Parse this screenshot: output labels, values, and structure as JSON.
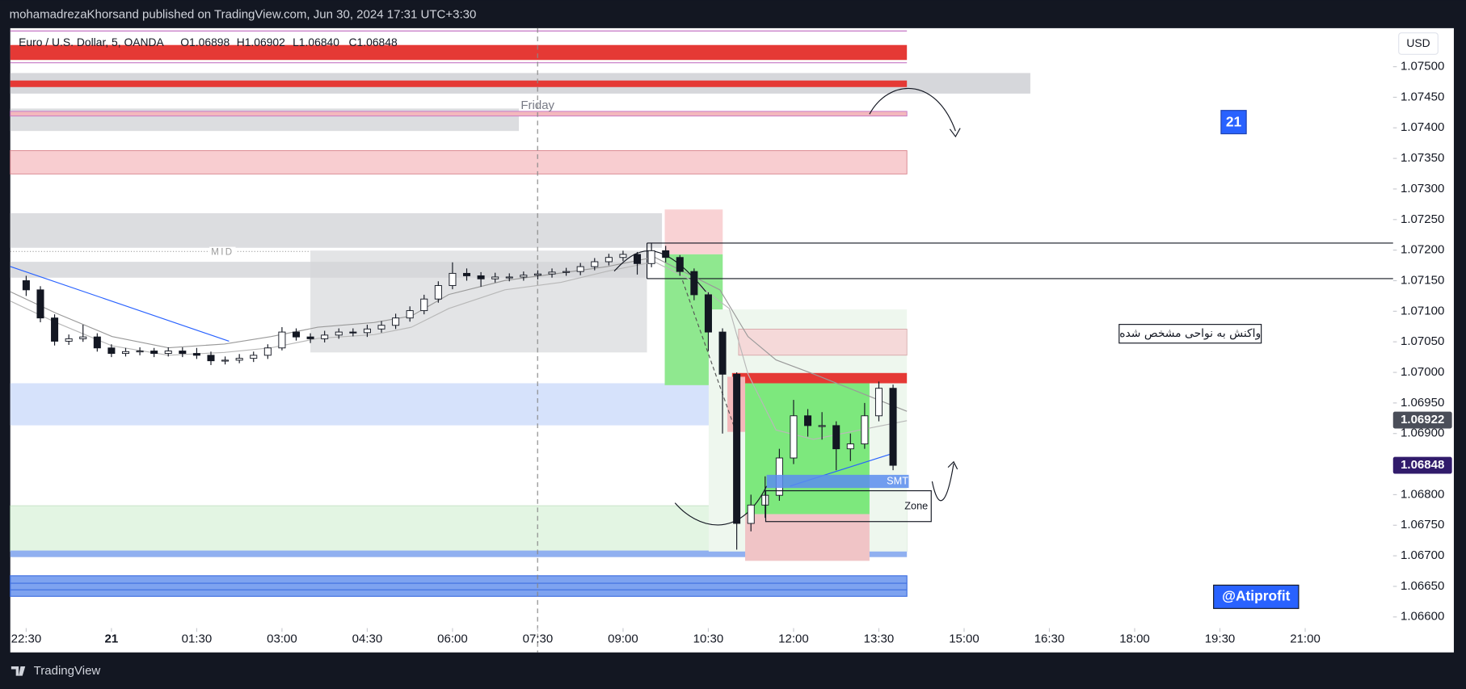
{
  "header": {
    "publisher": "mohamadrezaKhorsand published on TradingView.com, Jun 30, 2024 17:31 UTC+3:30"
  },
  "footer": {
    "brand": "TradingView"
  },
  "chart_data": {
    "type": "candlestick",
    "symbol": "Euro / U.S. Dollar, 5, OANDA",
    "ohlc_legend": [
      "O1.06898",
      "H1.06902",
      "L1.06840",
      "C1.06848"
    ],
    "currency": "USD",
    "session_label": "Friday",
    "mid_label": "MID",
    "annotations": [
      "21",
      "واکنش به نواحی مشخص شده",
      "SMT",
      "Zone",
      "@Atiprofit"
    ],
    "up_color": "#ffffff",
    "down_color": "#131722",
    "x": [
      "22:30",
      "22:45",
      "23:00",
      "23:15",
      "23:30",
      "23:45",
      "00:00",
      "00:15",
      "00:30",
      "00:45",
      "01:00",
      "01:15",
      "01:30",
      "01:45",
      "02:00",
      "02:15",
      "02:30",
      "02:45",
      "03:00",
      "03:15",
      "03:30",
      "03:45",
      "04:00",
      "04:15",
      "04:30",
      "04:45",
      "05:00",
      "05:15",
      "05:30",
      "05:45",
      "06:00",
      "06:15",
      "06:30",
      "06:45",
      "07:00",
      "07:15",
      "07:30",
      "07:45",
      "08:00",
      "08:15",
      "08:30",
      "08:45",
      "09:00",
      "09:15",
      "09:30",
      "09:45",
      "10:00",
      "10:15",
      "10:30",
      "10:45",
      "11:00",
      "11:15",
      "11:30",
      "11:45",
      "12:00",
      "12:15",
      "12:30",
      "12:45",
      "13:00",
      "13:15",
      "13:30",
      "13:45"
    ],
    "open": [
      1.0715,
      1.07135,
      1.07089,
      1.07051,
      1.07055,
      1.07058,
      1.0704,
      1.07031,
      1.07034,
      1.07035,
      1.07031,
      1.07035,
      1.07031,
      1.07028,
      1.07019,
      1.0702,
      1.07023,
      1.07028,
      1.0704,
      1.07066,
      1.07058,
      1.07055,
      1.07061,
      1.07066,
      1.07065,
      1.07071,
      1.07077,
      1.07089,
      1.07101,
      1.0712,
      1.07142,
      1.07162,
      1.07158,
      1.07153,
      1.07156,
      1.07156,
      1.07159,
      1.07161,
      1.07164,
      1.07165,
      1.07173,
      1.07181,
      1.07188,
      1.07193,
      1.07178,
      1.07199,
      1.07188,
      1.07165,
      1.07127,
      1.07066,
      1.06997,
      1.06753,
      1.06783,
      1.06799,
      1.0686,
      1.06929,
      1.06913,
      1.06913,
      1.06875,
      1.06883,
      1.06929,
      1.06974
    ],
    "high": [
      1.07158,
      1.07141,
      1.07095,
      1.07062,
      1.07078,
      1.07064,
      1.07046,
      1.0704,
      1.07041,
      1.0704,
      1.07041,
      1.07041,
      1.0704,
      1.07034,
      1.07026,
      1.0703,
      1.07034,
      1.07046,
      1.07074,
      1.07072,
      1.07064,
      1.07068,
      1.07072,
      1.07072,
      1.07078,
      1.07084,
      1.07096,
      1.07108,
      1.07127,
      1.07149,
      1.0718,
      1.0717,
      1.07164,
      1.07163,
      1.07162,
      1.07165,
      1.07167,
      1.0717,
      1.07171,
      1.07179,
      1.07187,
      1.07194,
      1.07199,
      1.07197,
      1.07212,
      1.07207,
      1.07192,
      1.0717,
      1.07131,
      1.07072,
      1.07,
      1.068,
      1.0683,
      1.06875,
      1.06955,
      1.0694,
      1.06935,
      1.0692,
      1.069,
      1.0695,
      1.06985,
      1.0698
    ],
    "low": [
      1.07125,
      1.07082,
      1.07044,
      1.07045,
      1.0705,
      1.07034,
      1.07025,
      1.07026,
      1.07028,
      1.07025,
      1.07026,
      1.07025,
      1.07022,
      1.07012,
      1.07013,
      1.07015,
      1.07017,
      1.07022,
      1.07036,
      1.07052,
      1.07048,
      1.07049,
      1.07055,
      1.07059,
      1.07058,
      1.07065,
      1.07071,
      1.07083,
      1.07095,
      1.07114,
      1.07136,
      1.0715,
      1.0714,
      1.07147,
      1.07149,
      1.0715,
      1.07152,
      1.07155,
      1.07158,
      1.07159,
      1.07167,
      1.07175,
      1.07182,
      1.0716,
      1.07172,
      1.0718,
      1.07158,
      1.07118,
      1.07035,
      1.069,
      1.0671,
      1.0674,
      1.06762,
      1.0679,
      1.0685,
      1.06895,
      1.0689,
      1.0684,
      1.06855,
      1.06875,
      1.0692,
      1.0684
    ],
    "close": [
      1.07135,
      1.07089,
      1.07051,
      1.07055,
      1.07058,
      1.0704,
      1.07031,
      1.07034,
      1.07035,
      1.07031,
      1.07035,
      1.07031,
      1.07028,
      1.07019,
      1.0702,
      1.07023,
      1.07028,
      1.0704,
      1.07066,
      1.07058,
      1.07055,
      1.07061,
      1.07066,
      1.07065,
      1.07071,
      1.07077,
      1.07089,
      1.07101,
      1.0712,
      1.07142,
      1.07162,
      1.07158,
      1.07153,
      1.07156,
      1.07156,
      1.07159,
      1.07161,
      1.07164,
      1.07165,
      1.07173,
      1.07181,
      1.07188,
      1.07193,
      1.07178,
      1.07199,
      1.07188,
      1.07165,
      1.07127,
      1.07066,
      1.06997,
      1.06753,
      1.06783,
      1.06799,
      1.0686,
      1.06929,
      1.06913,
      1.06913,
      1.06875,
      1.06883,
      1.06929,
      1.06974,
      1.06848
    ],
    "ylim": [
      1.06542,
      1.07563
    ],
    "yticks": [
      {
        "value": 1.066,
        "label": "1.06600"
      },
      {
        "value": 1.0665,
        "label": "1.06650"
      },
      {
        "value": 1.067,
        "label": "1.06700"
      },
      {
        "value": 1.0675,
        "label": "1.06750"
      },
      {
        "value": 1.068,
        "label": "1.06800"
      },
      {
        "value": 1.0685,
        "label": "1.06850"
      },
      {
        "value": 1.069,
        "label": "1.06900"
      },
      {
        "value": 1.0695,
        "label": "1.06950"
      },
      {
        "value": 1.07,
        "label": "1.07000"
      },
      {
        "value": 1.0705,
        "label": "1.07050"
      },
      {
        "value": 1.071,
        "label": "1.07100"
      },
      {
        "value": 1.0715,
        "label": "1.07150"
      },
      {
        "value": 1.072,
        "label": "1.07200"
      },
      {
        "value": 1.0725,
        "label": "1.07250"
      },
      {
        "value": 1.073,
        "label": "1.07300"
      },
      {
        "value": 1.0735,
        "label": "1.07350"
      },
      {
        "value": 1.074,
        "label": "1.07400"
      },
      {
        "value": 1.0745,
        "label": "1.07450"
      },
      {
        "value": 1.075,
        "label": "1.07500"
      }
    ],
    "xticks": [
      "22:30",
      {
        "value": "00:00",
        "label": "21"
      },
      "01:30",
      "03:00",
      "04:30",
      "06:00",
      "07:30",
      "09:00",
      "10:30",
      "12:00",
      "13:30",
      "15:00",
      "16:30",
      "18:00",
      "19:30",
      "21:00"
    ],
    "price_markers": [
      {
        "value": 1.06922,
        "color": "#4a4e59"
      },
      {
        "value": 1.06848,
        "color": "#311b6b"
      }
    ]
  }
}
